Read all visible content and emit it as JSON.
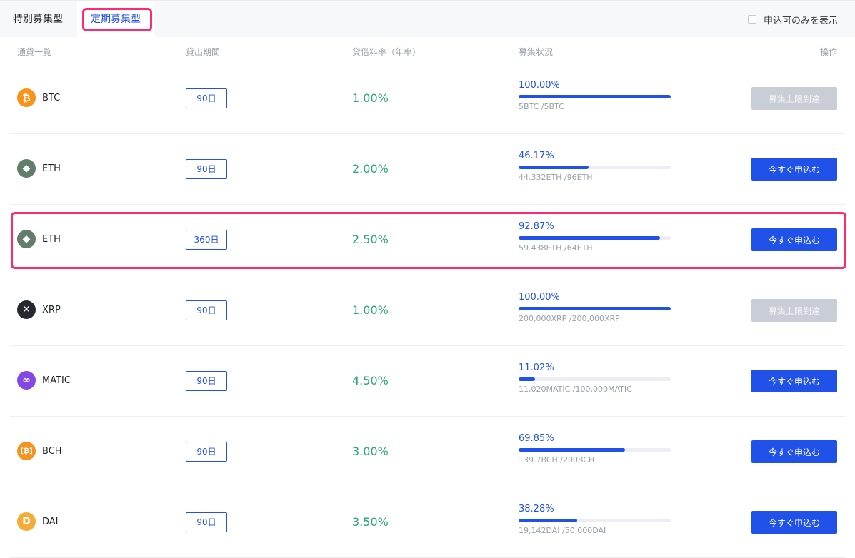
{
  "tabs": {
    "special": "特別募集型",
    "regular": "定期募集型"
  },
  "filter": {
    "label": "申込可のみを表示"
  },
  "columns": {
    "coin": "通貨一覧",
    "period": "貸出期間",
    "rate": "貸借料率（年率）",
    "status": "募集状況",
    "op": "操作"
  },
  "rows": [
    {
      "coin": "BTC",
      "icon": "bitcoin-icon",
      "icon_color": "#f7931a",
      "glyph": "₿",
      "period": "90日",
      "rate": "1.00%",
      "pct": "100.00%",
      "progress": 1.0,
      "amount": "5BTC /5BTC",
      "button": "募集上限到達",
      "disabled": true
    },
    {
      "coin": "ETH",
      "icon": "ethereum-icon",
      "icon_color": "#627d6a",
      "glyph": "◆",
      "period": "90日",
      "rate": "2.00%",
      "pct": "46.17%",
      "progress": 0.4617,
      "amount": "44.332ETH /96ETH",
      "button": "今すぐ申込む",
      "disabled": false
    },
    {
      "coin": "ETH",
      "icon": "ethereum-icon",
      "icon_color": "#627d6a",
      "glyph": "◆",
      "period": "360日",
      "rate": "2.50%",
      "pct": "92.87%",
      "progress": 0.9287,
      "amount": "59.438ETH /64ETH",
      "button": "今すぐ申込む",
      "disabled": false
    },
    {
      "coin": "XRP",
      "icon": "xrp-icon",
      "icon_color": "#23292f",
      "glyph": "✕",
      "period": "90日",
      "rate": "1.00%",
      "pct": "100.00%",
      "progress": 1.0,
      "amount": "200,000XRP /200,000XRP",
      "button": "募集上限到達",
      "disabled": true
    },
    {
      "coin": "MATIC",
      "icon": "polygon-icon",
      "icon_color": "#8247e5",
      "glyph": "∞",
      "period": "90日",
      "rate": "4.50%",
      "pct": "11.02%",
      "progress": 0.1102,
      "amount": "11,020MATIC /100,000MATIC",
      "button": "今すぐ申込む",
      "disabled": false
    },
    {
      "coin": "BCH",
      "icon": "bitcoin-cash-icon",
      "icon_color": "#f39321",
      "glyph": "[₿]",
      "period": "90日",
      "rate": "3.00%",
      "pct": "69.85%",
      "progress": 0.6985,
      "amount": "139.7BCH /200BCH",
      "button": "今すぐ申込む",
      "disabled": false
    },
    {
      "coin": "DAI",
      "icon": "dai-icon",
      "icon_color": "#f5ac37",
      "glyph": "D",
      "period": "90日",
      "rate": "3.50%",
      "pct": "38.28%",
      "progress": 0.3828,
      "amount": "19,142DAI /50,000DAI",
      "button": "今すぐ申込む",
      "disabled": false
    }
  ]
}
